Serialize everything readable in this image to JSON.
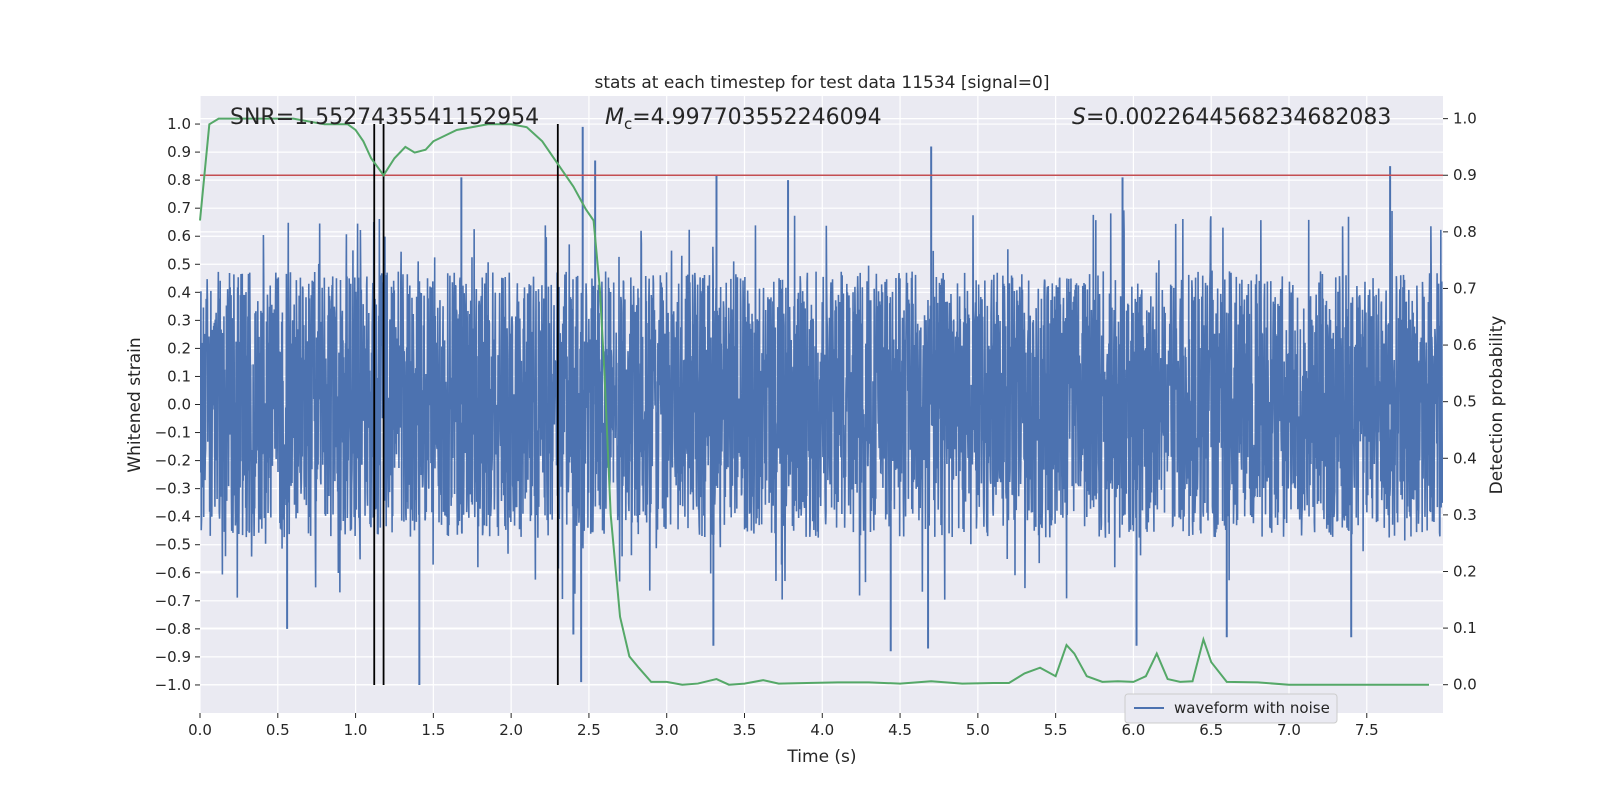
{
  "chart_data": {
    "type": "line",
    "title": "stats at each timestep for test data 11534 [signal=0]",
    "xlabel": "Time (s)",
    "ylabel_left": "Whitened strain",
    "ylabel_right": "Detection probability",
    "xlim": [
      0.0,
      7.99
    ],
    "ylim_left": [
      -1.1,
      1.1
    ],
    "ylim_right": [
      -0.05,
      1.04
    ],
    "x_ticks": [
      "0.0",
      "0.5",
      "1.0",
      "1.5",
      "2.0",
      "2.5",
      "3.0",
      "3.5",
      "4.0",
      "4.5",
      "5.0",
      "5.5",
      "6.0",
      "6.5",
      "7.0",
      "7.5"
    ],
    "y_ticks_left": [
      "1.0",
      "0.9",
      "0.8",
      "0.7",
      "0.6",
      "0.5",
      "0.4",
      "0.3",
      "0.2",
      "0.1",
      "0.0",
      "−0.1",
      "−0.2",
      "−0.3",
      "−0.4",
      "−0.5",
      "−0.6",
      "−0.7",
      "−0.8",
      "−0.9",
      "−1.0"
    ],
    "y_ticks_right": [
      "1.0",
      "0.9",
      "0.8",
      "0.7",
      "0.6",
      "0.5",
      "0.4",
      "0.3",
      "0.2",
      "0.1",
      "0.0"
    ],
    "grid": true,
    "annotations": {
      "snr": "SNR=1.5527435541152954",
      "mc_symbol": "M",
      "mc_sub": "c",
      "mc_value": "=4.997703552246094",
      "s_symbol": "S",
      "s_value": "=0.0022644568234682083"
    },
    "threshold_line": {
      "y_prob": 0.9,
      "color": "#c44e52"
    },
    "vertical_lines": {
      "x": [
        1.12,
        1.18,
        2.3
      ],
      "y_range": [
        -1.0,
        1.0
      ],
      "color": "#000000"
    },
    "legend": {
      "entries": [
        "waveform with noise"
      ],
      "location": "lower right"
    },
    "series": [
      {
        "name": "waveform with noise",
        "axis": "left",
        "color": "#4c72b0",
        "description": "whitened noisy strain time series, approx. +/-0.45 band with spikes up to +/-1.0",
        "spikes": [
          {
            "x": 2.46,
            "v": 0.99
          },
          {
            "x": 2.45,
            "v": -0.99
          },
          {
            "x": 1.41,
            "v": -1.0
          },
          {
            "x": 2.54,
            "v": 0.87
          },
          {
            "x": 4.7,
            "v": 0.92
          },
          {
            "x": 7.65,
            "v": 0.85
          },
          {
            "x": 3.32,
            "v": 0.82
          },
          {
            "x": 2.4,
            "v": -0.82
          },
          {
            "x": 0.56,
            "v": -0.8
          },
          {
            "x": 4.44,
            "v": -0.88
          },
          {
            "x": 4.68,
            "v": -0.87
          },
          {
            "x": 6.02,
            "v": -0.86
          },
          {
            "x": 3.3,
            "v": -0.86
          },
          {
            "x": 6.6,
            "v": -0.83
          },
          {
            "x": 7.4,
            "v": -0.83
          },
          {
            "x": 1.68,
            "v": 0.81
          },
          {
            "x": 3.78,
            "v": 0.8
          },
          {
            "x": 5.93,
            "v": 0.81
          },
          {
            "x": 5.3,
            "v": -0.2
          }
        ]
      },
      {
        "name": "detection probability",
        "axis": "right",
        "color": "#55a868",
        "x": [
          0.0,
          0.06,
          0.12,
          0.2,
          0.4,
          0.6,
          0.8,
          0.95,
          1.0,
          1.05,
          1.1,
          1.18,
          1.25,
          1.32,
          1.38,
          1.45,
          1.5,
          1.65,
          1.85,
          2.0,
          2.1,
          2.2,
          2.3,
          2.4,
          2.48,
          2.53,
          2.57,
          2.6,
          2.64,
          2.7,
          2.76,
          2.82,
          2.9,
          3.0,
          3.1,
          3.2,
          3.32,
          3.4,
          3.5,
          3.62,
          3.72,
          3.9,
          4.1,
          4.3,
          4.5,
          4.7,
          4.9,
          5.1,
          5.2,
          5.3,
          5.4,
          5.5,
          5.57,
          5.62,
          5.7,
          5.8,
          5.9,
          6.0,
          6.08,
          6.15,
          6.22,
          6.3,
          6.38,
          6.45,
          6.5,
          6.6,
          6.8,
          7.0,
          7.2,
          7.5,
          7.7,
          7.9
        ],
        "values": [
          0.82,
          0.99,
          1.0,
          1.0,
          1.0,
          1.0,
          0.99,
          0.99,
          0.98,
          0.96,
          0.93,
          0.9,
          0.93,
          0.95,
          0.94,
          0.945,
          0.96,
          0.98,
          0.99,
          0.99,
          0.985,
          0.96,
          0.92,
          0.88,
          0.84,
          0.82,
          0.7,
          0.55,
          0.3,
          0.12,
          0.05,
          0.03,
          0.005,
          0.005,
          0.0,
          0.002,
          0.01,
          0.0,
          0.002,
          0.008,
          0.002,
          0.003,
          0.004,
          0.004,
          0.002,
          0.006,
          0.002,
          0.003,
          0.003,
          0.02,
          0.03,
          0.015,
          0.07,
          0.055,
          0.015,
          0.005,
          0.006,
          0.005,
          0.015,
          0.055,
          0.01,
          0.005,
          0.006,
          0.08,
          0.04,
          0.005,
          0.004,
          0.0,
          0.0,
          0.0,
          0.0,
          0.0
        ]
      }
    ]
  }
}
